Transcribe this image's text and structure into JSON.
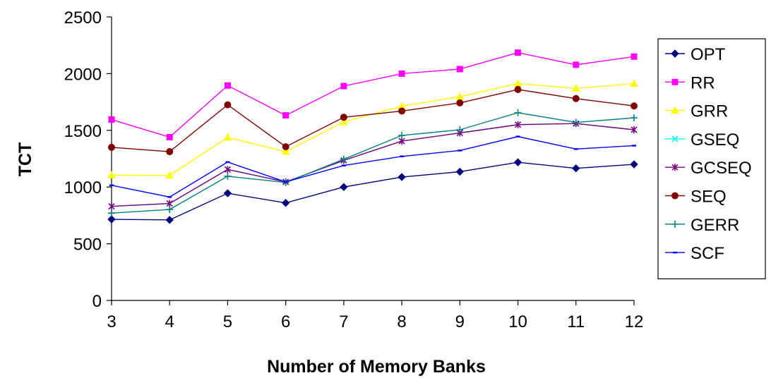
{
  "chart_data": {
    "type": "line",
    "title": "",
    "xlabel": "Number of Memory Banks",
    "ylabel": "TCT",
    "x": [
      3,
      4,
      5,
      6,
      7,
      8,
      9,
      10,
      11,
      12
    ],
    "ylim": [
      0,
      2500
    ],
    "yticks": [
      0,
      500,
      1000,
      1500,
      2000,
      2500
    ],
    "grid": false,
    "legend_position": "right",
    "series": [
      {
        "name": "OPT",
        "color": "#000080",
        "marker": "diamond",
        "values": [
          715,
          710,
          945,
          860,
          1000,
          1088,
          1135,
          1218,
          1165,
          1200
        ]
      },
      {
        "name": "RR",
        "color": "#ff00ff",
        "marker": "square",
        "values": [
          1595,
          1440,
          1895,
          1632,
          1890,
          2000,
          2040,
          2185,
          2078,
          2150
        ]
      },
      {
        "name": "GRR",
        "color": "#ffff00",
        "marker": "triangle",
        "values": [
          1105,
          1103,
          1437,
          1312,
          1575,
          1712,
          1797,
          1912,
          1870,
          1912
        ]
      },
      {
        "name": "GSEQ",
        "color": "#00ffff",
        "marker": "x",
        "values": [
          830,
          855,
          1155,
          1045,
          1235,
          1405,
          1477,
          1550,
          1560,
          1505
        ]
      },
      {
        "name": "GCSEQ",
        "color": "#800080",
        "marker": "star",
        "values": [
          830,
          855,
          1155,
          1045,
          1235,
          1405,
          1477,
          1550,
          1560,
          1505
        ]
      },
      {
        "name": "SEQ",
        "color": "#800000",
        "marker": "circle",
        "values": [
          1350,
          1312,
          1725,
          1355,
          1615,
          1670,
          1742,
          1860,
          1780,
          1715
        ]
      },
      {
        "name": "GERR",
        "color": "#008080",
        "marker": "plus",
        "values": [
          770,
          802,
          1095,
          1040,
          1245,
          1455,
          1505,
          1655,
          1570,
          1610
        ]
      },
      {
        "name": "SCF",
        "color": "#0000ff",
        "marker": "dash",
        "values": [
          1015,
          912,
          1220,
          1045,
          1190,
          1270,
          1322,
          1445,
          1335,
          1365
        ]
      }
    ]
  }
}
